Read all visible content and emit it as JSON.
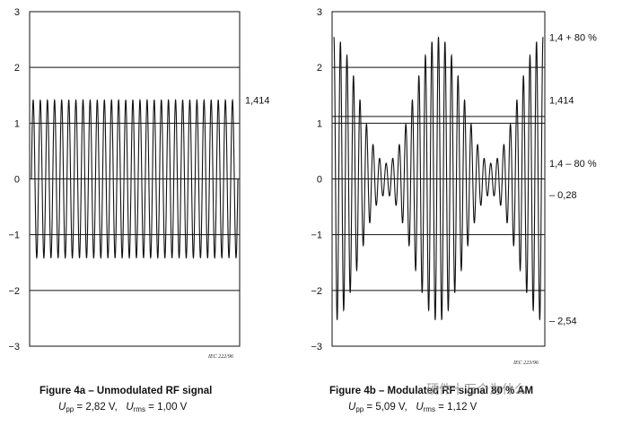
{
  "chart_data": [
    {
      "type": "line",
      "title": "Figure 4a – Unmodulated RF signal",
      "formula": {
        "pp_label": "U",
        "pp_sub": "pp",
        "pp_value": "= 2,82 V,",
        "rms_label": "U",
        "rms_sub": "rms",
        "rms_value": "= 1,00 V"
      },
      "iec_ref": "IEC 222/96",
      "ylim": [
        -3,
        3
      ],
      "yticks": [
        "3",
        "2",
        "1",
        "0",
        "−1",
        "−2",
        "−3"
      ],
      "grid": true,
      "amplitude": 1.414,
      "cycles": 29,
      "right_labels": [
        {
          "text": "1,414",
          "y": 1.414
        }
      ]
    },
    {
      "type": "line",
      "title": "Figure 4b – Modulated RF signal 80 % AM",
      "formula": {
        "pp_label": "U",
        "pp_sub": "pp",
        "pp_value": "= 5,09 V,",
        "rms_label": "U",
        "rms_sub": "rms",
        "rms_value": "= 1,12 V"
      },
      "iec_ref": "IEC 223/96",
      "ylim": [
        -3,
        3
      ],
      "yticks": [
        "3",
        "2",
        "1",
        "0",
        "−1",
        "−2",
        "−3"
      ],
      "grid": true,
      "carrier_amplitude": 1.414,
      "modulation_depth": 0.8,
      "carrier_cycles": 32,
      "envelope_periods": 2,
      "right_labels": [
        {
          "text": "1,4 + 80 %",
          "y": 2.54
        },
        {
          "text": "1,414",
          "y": 1.414
        },
        {
          "text": "1,4 – 80 %",
          "y": 0.28
        },
        {
          "text": "– 0,28",
          "y": -0.28
        },
        {
          "text": "– 2,54",
          "y": -2.54
        }
      ],
      "extra_hlines": [
        1.12
      ]
    }
  ],
  "watermark": "硬件十万个为什么"
}
